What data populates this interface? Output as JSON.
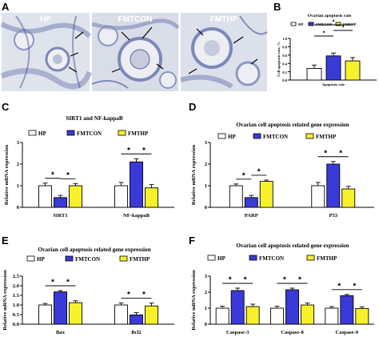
{
  "colors": {
    "HP": "#ffffff",
    "FMTCON": "#3a3ad8",
    "FMTHP": "#f7f12c",
    "tissue_bg": "#dfe3ec",
    "tissue_stain": "#7d88b8",
    "tissue_dark": "#4a5590"
  },
  "panel_letters": [
    "A",
    "B",
    "C",
    "D",
    "E",
    "F"
  ],
  "micrographs": [
    {
      "label": "HP"
    },
    {
      "label": "FMTCON"
    },
    {
      "label": "FMTHP"
    }
  ],
  "legend_labels": [
    "HP",
    "FMTCON",
    "FMTHP"
  ],
  "chart_data": [
    {
      "panel": "B",
      "type": "bar",
      "title": "Ovarian apoptosis rate",
      "ylabel": "Cell apoptosis rate, %",
      "ylim": [
        0,
        1.0
      ],
      "yticks": [
        "0.0",
        "0.2",
        "0.4",
        "0.6",
        "0.8",
        "1.0"
      ],
      "categories": [
        "Apoptosis rate"
      ],
      "series": [
        {
          "name": "HP",
          "values": [
            0.28
          ],
          "errors": [
            0.08
          ]
        },
        {
          "name": "FMTCON",
          "values": [
            0.58
          ],
          "errors": [
            0.07
          ]
        },
        {
          "name": "FMTHP",
          "values": [
            0.46
          ],
          "errors": [
            0.08
          ]
        }
      ],
      "significance": [
        {
          "category": 0,
          "from": 0,
          "to": 1,
          "label": "*"
        },
        {
          "category": 0,
          "from": 1,
          "to": 2,
          "label": "*"
        },
        {
          "category": 0,
          "from": 0,
          "to": 2,
          "label": "*"
        }
      ]
    },
    {
      "panel": "C",
      "type": "bar",
      "title": "SIRT1 and NF-kappaB",
      "ylabel": "Relative mRNA expression",
      "ylim": [
        0,
        3
      ],
      "yticks": [
        "0",
        "1",
        "2",
        "3"
      ],
      "categories": [
        "SIRT1",
        "NF-kappaB"
      ],
      "series": [
        {
          "name": "HP",
          "values": [
            1.0,
            1.0
          ],
          "errors": [
            0.12,
            0.15
          ]
        },
        {
          "name": "FMTCON",
          "values": [
            0.45,
            2.1
          ],
          "errors": [
            0.1,
            0.15
          ]
        },
        {
          "name": "FMTHP",
          "values": [
            1.0,
            0.9
          ],
          "errors": [
            0.1,
            0.15
          ]
        }
      ],
      "significance": [
        {
          "category": 0,
          "from": 0,
          "to": 1,
          "label": "*"
        },
        {
          "category": 0,
          "from": 1,
          "to": 2,
          "label": "*"
        },
        {
          "category": 1,
          "from": 0,
          "to": 1,
          "label": "*"
        },
        {
          "category": 1,
          "from": 1,
          "to": 2,
          "label": "*"
        }
      ]
    },
    {
      "panel": "D",
      "type": "bar",
      "title": "Ovarian cell apoptosis related gene expression",
      "ylabel": "Relative mRNA expression",
      "ylim": [
        0,
        3
      ],
      "yticks": [
        "0",
        "1",
        "2",
        "3"
      ],
      "categories": [
        "PARP",
        "P53"
      ],
      "series": [
        {
          "name": "HP",
          "values": [
            1.0,
            1.0
          ],
          "errors": [
            0.08,
            0.15
          ]
        },
        {
          "name": "FMTCON",
          "values": [
            0.45,
            2.0
          ],
          "errors": [
            0.1,
            0.12
          ]
        },
        {
          "name": "FMTHP",
          "values": [
            1.2,
            0.85
          ],
          "errors": [
            0.06,
            0.12
          ]
        }
      ],
      "significance": [
        {
          "category": 0,
          "from": 0,
          "to": 1,
          "label": "*"
        },
        {
          "category": 0,
          "from": 1,
          "to": 2,
          "label": "*"
        },
        {
          "category": 1,
          "from": 0,
          "to": 1,
          "label": "*"
        },
        {
          "category": 1,
          "from": 1,
          "to": 2,
          "label": "*"
        }
      ]
    },
    {
      "panel": "E",
      "type": "bar",
      "title": "Ovarian cell apoptosis related gene expression",
      "ylabel": "Relative mRNA expression",
      "ylim": [
        0,
        2.5
      ],
      "yticks": [
        "0.0",
        "0.5",
        "1.0",
        "1.5",
        "2.0",
        "2.5"
      ],
      "categories": [
        "Bax",
        "Bcl2"
      ],
      "series": [
        {
          "name": "HP",
          "values": [
            1.0,
            1.0
          ],
          "errors": [
            0.08,
            0.1
          ]
        },
        {
          "name": "FMTCON",
          "values": [
            1.68,
            0.48
          ],
          "errors": [
            0.07,
            0.12
          ]
        },
        {
          "name": "FMTHP",
          "values": [
            1.12,
            0.95
          ],
          "errors": [
            0.1,
            0.15
          ]
        }
      ],
      "significance": [
        {
          "category": 0,
          "from": 0,
          "to": 1,
          "label": "*"
        },
        {
          "category": 0,
          "from": 1,
          "to": 2,
          "label": "*"
        },
        {
          "category": 1,
          "from": 0,
          "to": 1,
          "label": "*"
        },
        {
          "category": 1,
          "from": 1,
          "to": 2,
          "label": "*"
        }
      ]
    },
    {
      "panel": "F",
      "type": "bar",
      "title": "Ovarian cell apoptosis related gene expression",
      "ylabel": "Relative mRNA expression",
      "ylim": [
        0,
        3
      ],
      "yticks": [
        "0",
        "1",
        "2",
        "3"
      ],
      "categories": [
        "Caspase-3",
        "Caspase-8",
        "Caspase-9"
      ],
      "series": [
        {
          "name": "HP",
          "values": [
            1.0,
            1.0,
            1.0
          ],
          "errors": [
            0.12,
            0.12,
            0.1
          ]
        },
        {
          "name": "FMTCON",
          "values": [
            2.1,
            2.15,
            1.78
          ],
          "errors": [
            0.15,
            0.1,
            0.08
          ]
        },
        {
          "name": "FMTHP",
          "values": [
            1.1,
            1.2,
            0.98
          ],
          "errors": [
            0.15,
            0.12,
            0.1
          ]
        }
      ],
      "significance": [
        {
          "category": 0,
          "from": 0,
          "to": 1,
          "label": "*"
        },
        {
          "category": 0,
          "from": 1,
          "to": 2,
          "label": "*"
        },
        {
          "category": 1,
          "from": 0,
          "to": 1,
          "label": "*"
        },
        {
          "category": 1,
          "from": 1,
          "to": 2,
          "label": "*"
        },
        {
          "category": 2,
          "from": 0,
          "to": 1,
          "label": "*"
        },
        {
          "category": 2,
          "from": 1,
          "to": 2,
          "label": "*"
        }
      ]
    }
  ]
}
